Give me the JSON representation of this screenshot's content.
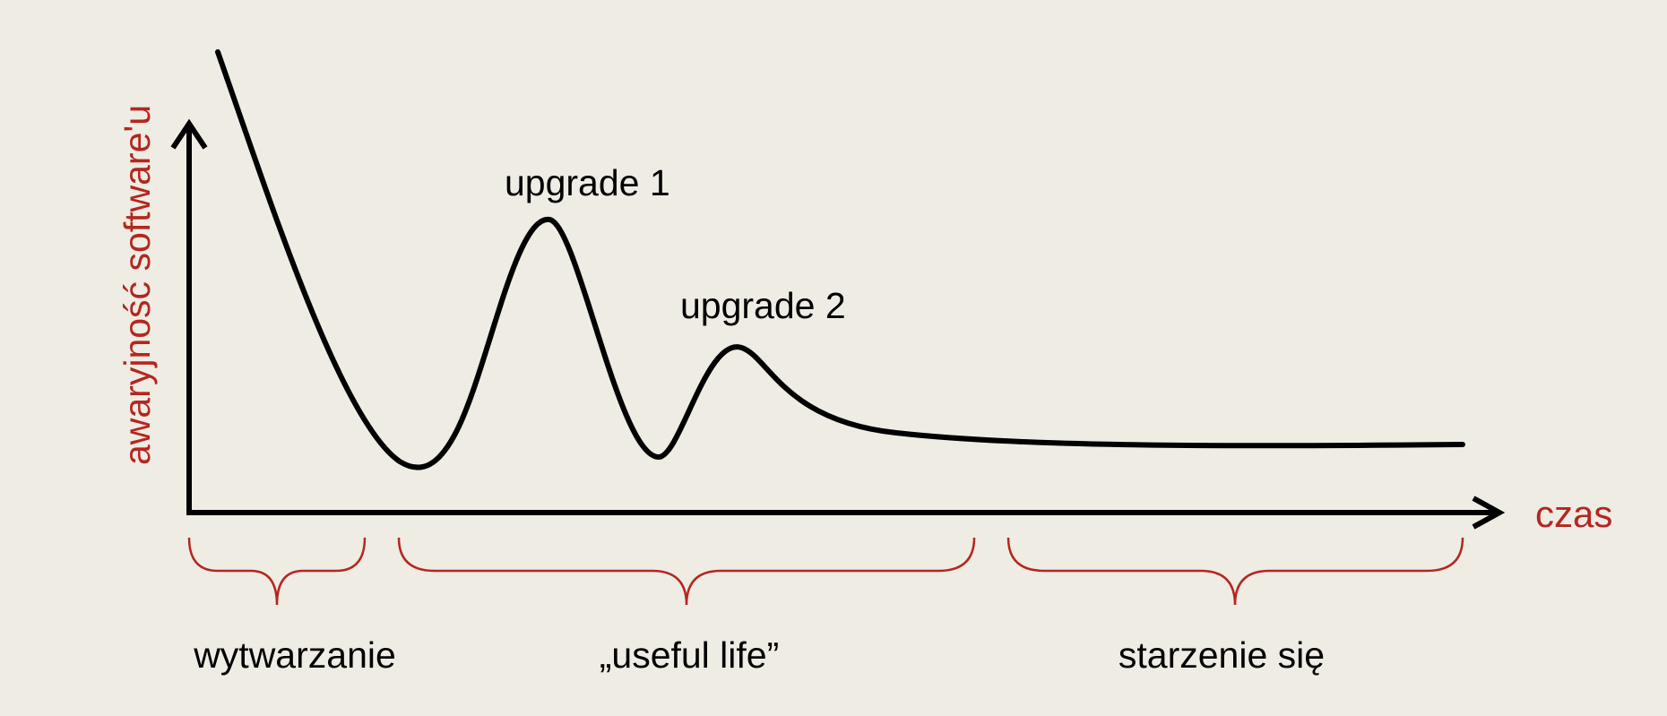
{
  "diagram": {
    "y_axis_label": "awaryjność software'u",
    "x_axis_label": "czas",
    "annotations": {
      "upgrade_1": "upgrade 1",
      "upgrade_2": "upgrade 2"
    },
    "phases": [
      {
        "label": "wytwarzanie"
      },
      {
        "label": "„useful life”"
      },
      {
        "label": "starzenie się"
      }
    ],
    "colors": {
      "background": "#efece4",
      "curve": "#000000",
      "axes": "#000000",
      "accent": "#b5261e"
    }
  }
}
